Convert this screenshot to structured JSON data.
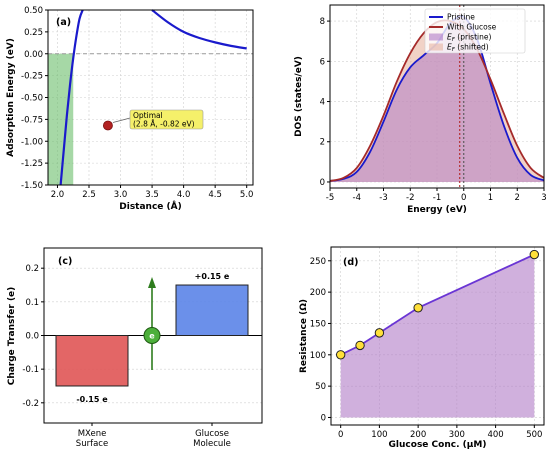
{
  "chart_data": [
    {
      "panel": "(a)",
      "type": "line",
      "xlabel": "Distance (Å)",
      "ylabel": "Adsorption Energy (eV)",
      "xlim": [
        1.85,
        5.1
      ],
      "ylim": [
        -1.5,
        0.5
      ],
      "xticks": [
        "2.0",
        "2.5",
        "3.0",
        "3.5",
        "4.0",
        "4.5",
        "5.0"
      ],
      "yticks": [
        "0.50",
        "0.25",
        "0.00",
        "-0.25",
        "-0.50",
        "-0.75",
        "-1.00",
        "-1.25",
        "-1.50"
      ],
      "series": [
        {
          "x": [
            2.05,
            2.1,
            2.15,
            2.2,
            2.25,
            2.3,
            2.35,
            2.4
          ],
          "y": [
            -1.5,
            -1.1,
            -0.7,
            -0.35,
            -0.05,
            0.2,
            0.4,
            0.5
          ],
          "color": "#1a1acc"
        },
        {
          "x": [
            3.5,
            3.75,
            4.0,
            4.25,
            4.5,
            4.75,
            5.0
          ],
          "y": [
            0.5,
            0.36,
            0.25,
            0.18,
            0.13,
            0.09,
            0.06
          ],
          "color": "#1a1acc"
        }
      ],
      "hline": 0,
      "shade": {
        "x0": 1.85,
        "x1": 2.25,
        "y0": -1.5,
        "y1": 0,
        "color": "#5cb85c"
      },
      "point": {
        "x": 2.8,
        "y": -0.82,
        "color": "#b22222"
      },
      "annotation": "Optimal\n(2.8 Å, -0.82 eV)",
      "annotation_lines": [
        "Optimal",
        "(2.8 Å, -0.82 eV)"
      ],
      "grid": true
    },
    {
      "panel": "(b)",
      "type": "area",
      "xlabel": "Energy (eV)",
      "ylabel": "DOS (states/eV)",
      "xlim": [
        -5,
        3
      ],
      "ylim": [
        -0.3,
        8.8
      ],
      "xticks": [
        "-5",
        "-4",
        "-3",
        "-2",
        "-1",
        "0",
        "1",
        "2",
        "3"
      ],
      "yticks": [
        "0",
        "2",
        "4",
        "6",
        "8"
      ],
      "series": [
        {
          "name": "Pristine",
          "color": "#1a1acc",
          "x": [
            -5,
            -4.5,
            -4,
            -3.5,
            -3,
            -2.5,
            -2,
            -1.5,
            -1,
            -0.5,
            0,
            0.5,
            1,
            1.5,
            2,
            2.5,
            3
          ],
          "y": [
            0.05,
            0.15,
            0.5,
            1.5,
            3.0,
            4.6,
            5.7,
            6.3,
            6.9,
            7.9,
            8.2,
            7.1,
            4.9,
            2.8,
            1.2,
            0.35,
            0.08
          ]
        },
        {
          "name": "With Glucose",
          "color": "#a52a2a",
          "x": [
            -5,
            -4.5,
            -4,
            -3.5,
            -3,
            -2.5,
            -2,
            -1.5,
            -1,
            -0.5,
            0,
            0.5,
            1,
            1.5,
            2,
            2.5,
            3
          ],
          "y": [
            0.05,
            0.2,
            0.7,
            1.8,
            3.3,
            5.0,
            6.4,
            7.4,
            7.95,
            8.0,
            7.6,
            6.6,
            5.1,
            3.4,
            1.8,
            0.7,
            0.2
          ]
        }
      ],
      "fills": [
        {
          "name": "E_F (pristine)",
          "color": "#b07cc6"
        },
        {
          "name": "E_F (shifted)",
          "color": "#e8b4a0"
        }
      ],
      "vlines": [
        {
          "x": 0,
          "color": "#555555"
        },
        {
          "x": -0.15,
          "color": "#b22222"
        }
      ],
      "grid": true,
      "legend": "top-right"
    },
    {
      "panel": "(c)",
      "type": "bar",
      "ylabel": "Charge Transfer (e)",
      "categories": [
        "MXene\nSurface",
        "Glucose\nMolecule"
      ],
      "category_lines": [
        [
          "MXene",
          "Surface"
        ],
        [
          "Glucose",
          "Molecule"
        ]
      ],
      "values": [
        -0.15,
        0.15
      ],
      "value_labels": [
        "-0.15 e",
        "+0.15 e"
      ],
      "colors": [
        "#e05555",
        "#5b84e8"
      ],
      "ylim": [
        -0.26,
        0.26
      ],
      "yticks": [
        "0.2",
        "0.1",
        "0.0",
        "-0.1",
        "-0.2"
      ],
      "icon": "electron-transfer-arrow-icon",
      "icon_symbol": "e",
      "grid": true
    },
    {
      "panel": "(d)",
      "type": "line",
      "xlabel": "Glucose Conc. (μM)",
      "ylabel": "Resistance (Ω)",
      "x": [
        0,
        50,
        100,
        200,
        500
      ],
      "y": [
        100,
        115,
        135,
        175,
        260
      ],
      "xlim": [
        -25,
        525
      ],
      "ylim": [
        -12,
        272
      ],
      "xticks": [
        "0",
        "100",
        "200",
        "300",
        "400",
        "500"
      ],
      "yticks": [
        "250",
        "200",
        "150",
        "100",
        "50",
        "0"
      ],
      "line_color": "#6a35d4",
      "fill_color": "#b07cc6",
      "marker_color": "#ffe03a",
      "grid": true
    }
  ]
}
